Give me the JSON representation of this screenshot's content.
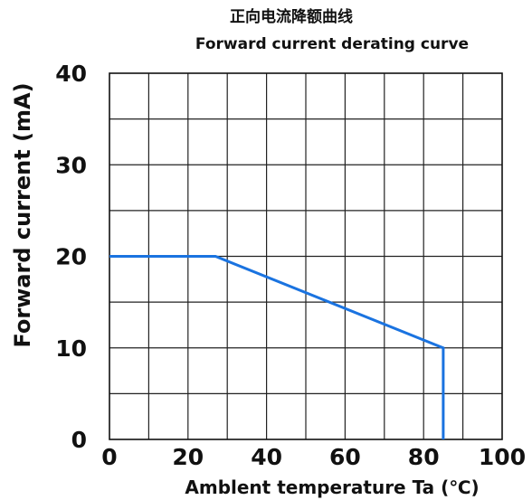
{
  "chart_data": {
    "type": "line",
    "title": "正向电流降额曲线",
    "subtitle": "Forward current derating curve",
    "xlabel": "Amblent temperature Ta (℃)",
    "ylabel": "Forward current (mA)",
    "xlim": [
      0,
      100
    ],
    "ylim": [
      0,
      40
    ],
    "x_ticks": [
      "0",
      "20",
      "40",
      "60",
      "80",
      "100"
    ],
    "y_ticks": [
      "0",
      "10",
      "20",
      "30",
      "40"
    ],
    "grid": true,
    "series": [
      {
        "x": [
          0,
          27,
          85,
          85
        ],
        "y": [
          20,
          20,
          10,
          0
        ],
        "color": "#1a73e0"
      }
    ]
  }
}
